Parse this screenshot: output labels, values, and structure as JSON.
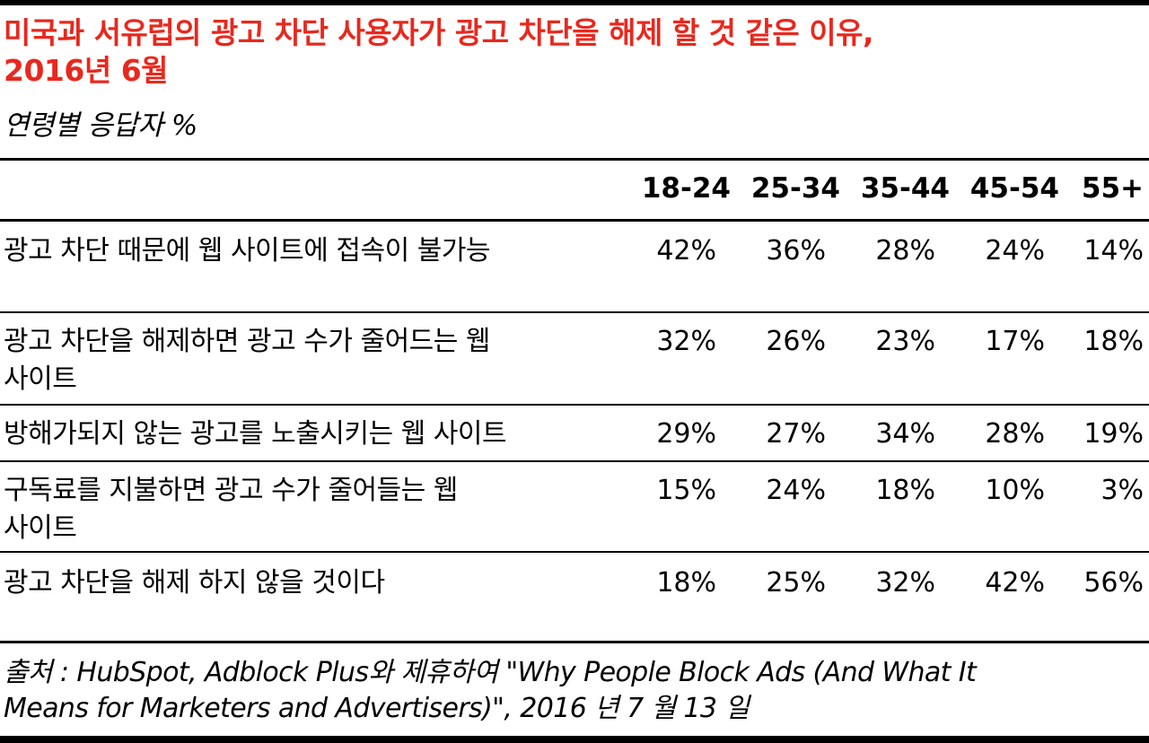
{
  "title_line1": "미국과 서유럽의 광고 차단 사용자가 광고 차단을 해제 할 것 같은 이유,",
  "title_line2": "2016년 6월",
  "subtitle": "연령별 응답자 %",
  "colors": {
    "title": "#e8281e",
    "text": "#000000",
    "rules": "#000000"
  },
  "chart_data": {
    "type": "table",
    "columns": [
      "18-24",
      "25-34",
      "35-44",
      "45-54",
      "55+"
    ],
    "rows": [
      {
        "label_lines": [
          "광고 차단 때문에 웹 사이트에 접속이 불가능"
        ],
        "values": [
          "42%",
          "36%",
          "28%",
          "24%",
          "14%"
        ]
      },
      {
        "label_lines": [
          "광고 차단을 해제하면 광고 수가 줄어드는 웹",
          "사이트"
        ],
        "values": [
          "32%",
          "26%",
          "23%",
          "17%",
          "18%"
        ]
      },
      {
        "label_lines": [
          "방해가되지 않는 광고를 노출시키는 웹 사이트"
        ],
        "values": [
          "29%",
          "27%",
          "34%",
          "28%",
          "19%"
        ]
      },
      {
        "label_lines": [
          "구독료를 지불하면 광고 수가 줄어들는 웹",
          "사이트"
        ],
        "values": [
          "15%",
          "24%",
          "18%",
          "10%",
          "3%"
        ]
      },
      {
        "label_lines": [
          "광고 차단을 해제 하지 않을 것이다"
        ],
        "values": [
          "18%",
          "25%",
          "32%",
          "42%",
          "56%"
        ]
      }
    ]
  },
  "source_line1": "출처 : HubSpot, Adblock Plus와 제휴하여 \"Why People Block Ads (And What It",
  "source_line2": "Means for Marketers and Advertisers)\", 2016 년 7 월 13 일"
}
